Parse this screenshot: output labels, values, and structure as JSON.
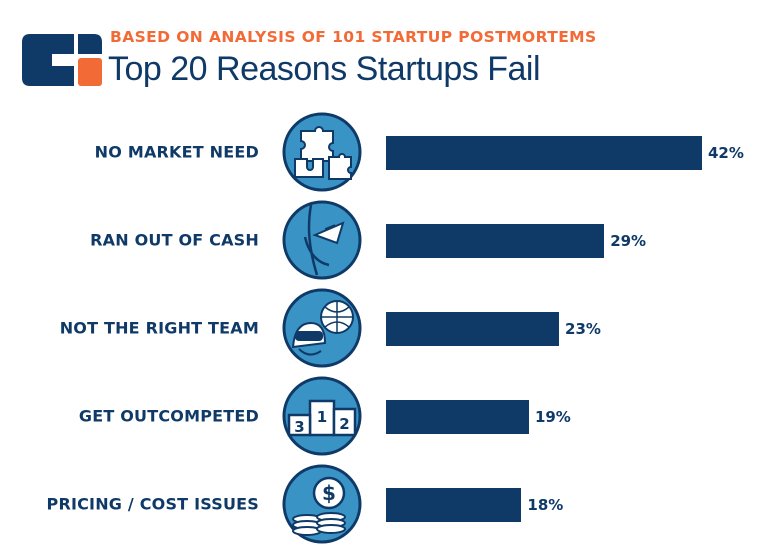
{
  "header": {
    "subtitle": "BASED ON ANALYSIS OF 101 STARTUP POSTMORTEMS",
    "title": "Top 20 Reasons Startups Fail"
  },
  "colors": {
    "navy": "#0f3a68",
    "orange": "#f26a36",
    "icon_blue": "#3a93c5",
    "icon_light": "#ffffff"
  },
  "chart_data": {
    "type": "bar",
    "orientation": "horizontal",
    "categories": [
      "NO MARKET NEED",
      "RAN OUT OF CASH",
      "NOT THE RIGHT TEAM",
      "GET OUTCOMPETED",
      "PRICING / COST ISSUES"
    ],
    "values": [
      42,
      29,
      23,
      19,
      18
    ],
    "value_labels": [
      "42%",
      "29%",
      "23%",
      "19%",
      "18%"
    ],
    "xlim": [
      0,
      42
    ],
    "grid": false,
    "icons": [
      "puzzle-icon",
      "money-pocket-icon",
      "team-vr-icon",
      "podium-icon",
      "coins-dollar-icon"
    ],
    "podium_numbers": [
      "3",
      "1",
      "2"
    ],
    "coin_symbol": "$"
  }
}
